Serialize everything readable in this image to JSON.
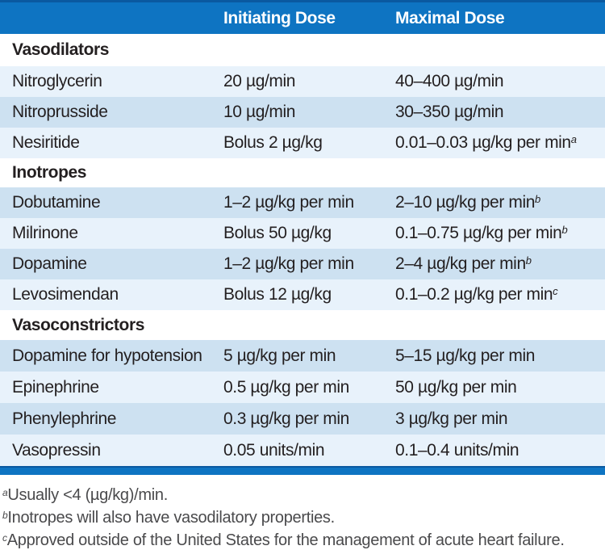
{
  "table": {
    "columns": {
      "initiating": "Initiating Dose",
      "maximal": "Maximal Dose"
    },
    "sections": [
      {
        "title": "Vasodilators",
        "rows": [
          {
            "name": "Nitroglycerin",
            "init": "20 µg/min",
            "max": "40–400 µg/min"
          },
          {
            "name": "Nitroprusside",
            "init": "10 µg/min",
            "max": "30–350 µg/min"
          },
          {
            "name": "Nesiritide",
            "init": "Bolus 2 µg/kg",
            "max": "0.01–0.03 µg/kg per min",
            "max_sup": "a"
          }
        ]
      },
      {
        "title": "Inotropes",
        "rows": [
          {
            "name": "Dobutamine",
            "init": "1–2 µg/kg per min",
            "max": "2–10 µg/kg per min",
            "max_sup": "b"
          },
          {
            "name": "Milrinone",
            "init": "Bolus 50 µg/kg",
            "max": "0.1–0.75 µg/kg per min",
            "max_sup": "b"
          },
          {
            "name": "Dopamine",
            "init": "1–2 µg/kg per min",
            "max": "2–4 µg/kg per min",
            "max_sup": "b"
          },
          {
            "name": "Levosimendan",
            "init": "Bolus 12 µg/kg",
            "max": "0.1–0.2 µg/kg per min",
            "max_sup": "c"
          }
        ]
      },
      {
        "title": "Vasoconstrictors",
        "rows": [
          {
            "name": "Dopamine for hypotension",
            "init": "5 µg/kg per min",
            "max": "5–15 µg/kg per min"
          },
          {
            "name": "Epinephrine",
            "init": "0.5 µg/kg per min",
            "max": "50 µg/kg per min"
          },
          {
            "name": "Phenylephrine",
            "init": "0.3 µg/kg per min",
            "max": "3 µg/kg per min"
          },
          {
            "name": "Vasopressin",
            "init": "0.05 units/min",
            "max": "0.1–0.4 units/min"
          }
        ]
      }
    ]
  },
  "footnotes": [
    {
      "sup": "a",
      "text": "Usually <4 (µg/kg)/min."
    },
    {
      "sup": "b",
      "text": "Inotropes will also have vasodilatory properties."
    },
    {
      "sup": "c",
      "text": "Approved outside of the United States for the management of acute heart failure."
    }
  ],
  "colors": {
    "header_blue": "#0e74c2",
    "bar_dark_edge": "#0a59a0",
    "row_light": "#e8f2fb",
    "row_dark": "#cde1f1",
    "body_text": "#231f20",
    "footnote_text": "#4a4a4c",
    "header_text": "#ffffff"
  }
}
